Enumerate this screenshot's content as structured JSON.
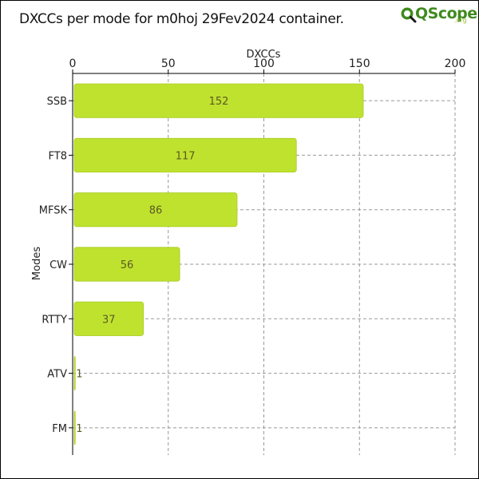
{
  "title": "DXCCs per mode for m0hoj 29Fev2024 container.",
  "logo": {
    "text": "QScope",
    "suffix": ".org"
  },
  "colors": {
    "bar": "#bfe22f",
    "bar_stroke": "#a9cc20",
    "label": "#5a5a20",
    "grid": "#999999",
    "axis": "#000000"
  },
  "chart_data": {
    "type": "bar",
    "orientation": "horizontal",
    "xlabel": "DXCCs",
    "ylabel": "Modes",
    "xlim": [
      0,
      200
    ],
    "xticks": [
      0,
      50,
      100,
      150,
      200
    ],
    "x_axis_position": "top",
    "grid": true,
    "categories": [
      "SSB",
      "FT8",
      "MFSK",
      "CW",
      "RTTY",
      "ATV",
      "FM"
    ],
    "values": [
      152,
      117,
      86,
      56,
      37,
      1,
      1
    ]
  }
}
